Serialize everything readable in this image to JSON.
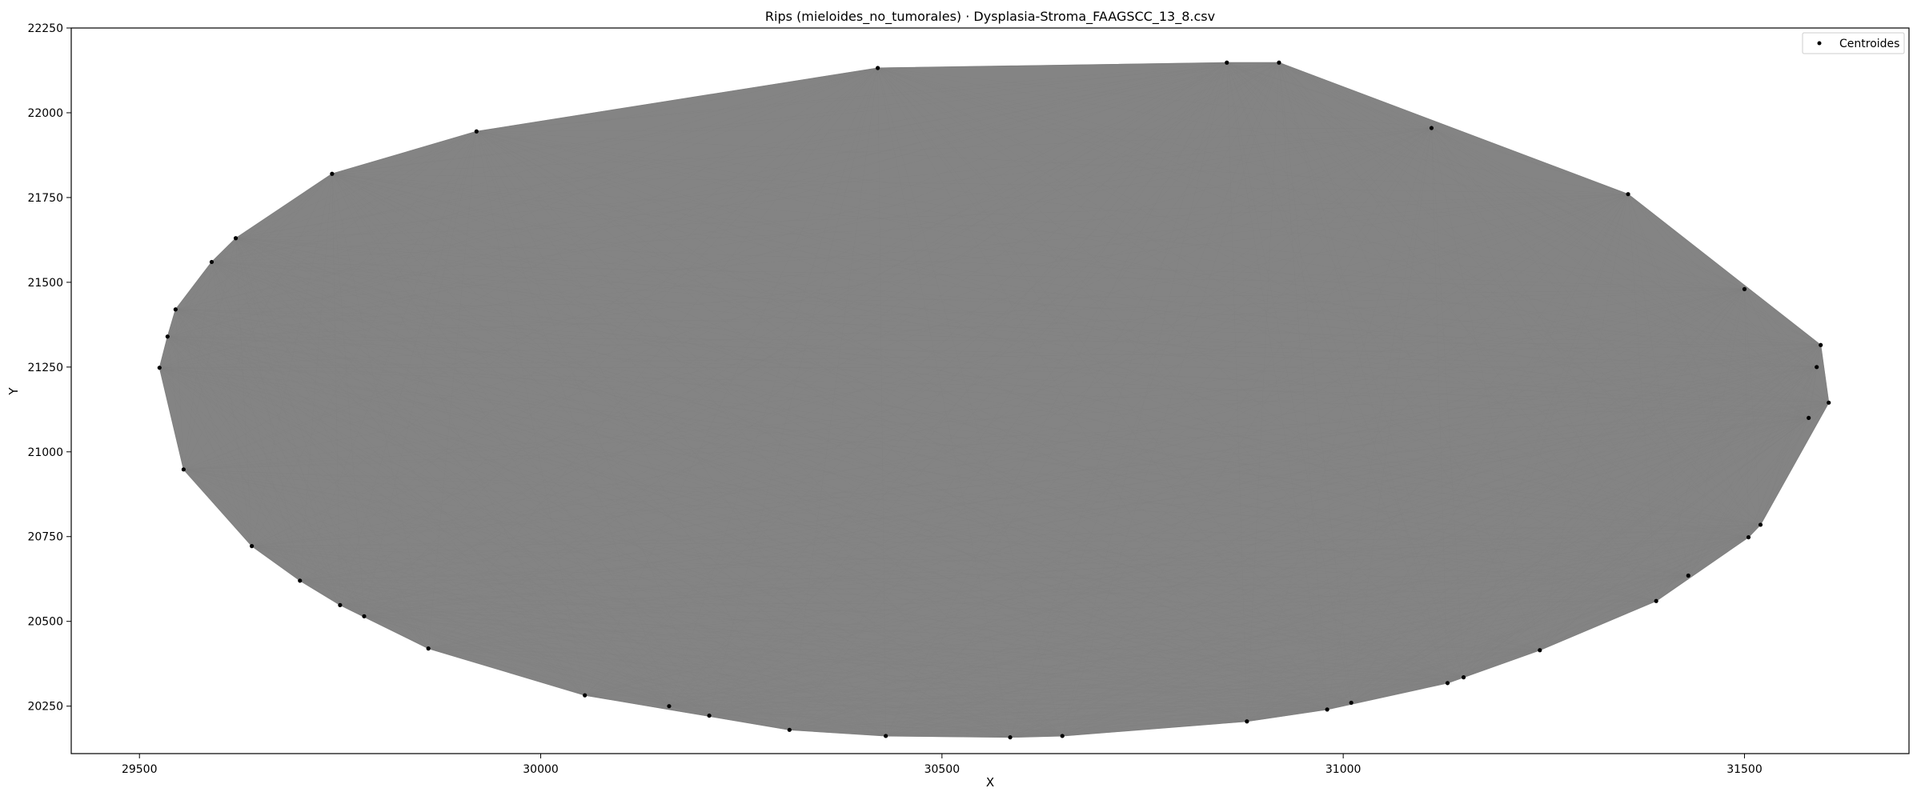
{
  "chart_data": {
    "type": "scatter",
    "title": "Rips (mieloides_no_tumorales) · Dysplasia-Stroma_FAAGSCC_13_8.csv",
    "xlabel": "X",
    "ylabel": "Y",
    "xlim": [
      29415,
      31705
    ],
    "ylim": [
      20110,
      22250
    ],
    "xticks": [
      29500,
      30000,
      30500,
      31000,
      31500
    ],
    "yticks": [
      20250,
      20500,
      20750,
      21000,
      21250,
      21500,
      21750,
      22000,
      22250
    ],
    "grid": false,
    "legend_position": "top-right",
    "edge_color": "#808080",
    "point_color": "#000000",
    "series": [
      {
        "name": "Centroides",
        "points": [
          [
            29525,
            21248
          ],
          [
            29535,
            21340
          ],
          [
            29545,
            21420
          ],
          [
            29555,
            20948
          ],
          [
            29590,
            21560
          ],
          [
            29620,
            21630
          ],
          [
            29640,
            20722
          ],
          [
            29700,
            20620
          ],
          [
            29740,
            21820
          ],
          [
            29750,
            20548
          ],
          [
            29780,
            20515
          ],
          [
            29860,
            20420
          ],
          [
            29920,
            21945
          ],
          [
            30055,
            20282
          ],
          [
            30160,
            20250
          ],
          [
            30210,
            20222
          ],
          [
            30310,
            20180
          ],
          [
            30420,
            22132
          ],
          [
            30430,
            20162
          ],
          [
            30585,
            20158
          ],
          [
            30650,
            20162
          ],
          [
            30855,
            22148
          ],
          [
            30880,
            20205
          ],
          [
            30920,
            22148
          ],
          [
            30980,
            20240
          ],
          [
            31010,
            20260
          ],
          [
            31110,
            21955
          ],
          [
            31130,
            20318
          ],
          [
            31150,
            20335
          ],
          [
            31245,
            20415
          ],
          [
            31355,
            21760
          ],
          [
            31390,
            20560
          ],
          [
            31430,
            20635
          ],
          [
            31505,
            20748
          ],
          [
            31520,
            20785
          ],
          [
            31500,
            21480
          ],
          [
            31580,
            21100
          ],
          [
            31590,
            21250
          ],
          [
            31595,
            21315
          ],
          [
            31605,
            21145
          ]
        ]
      }
    ]
  }
}
